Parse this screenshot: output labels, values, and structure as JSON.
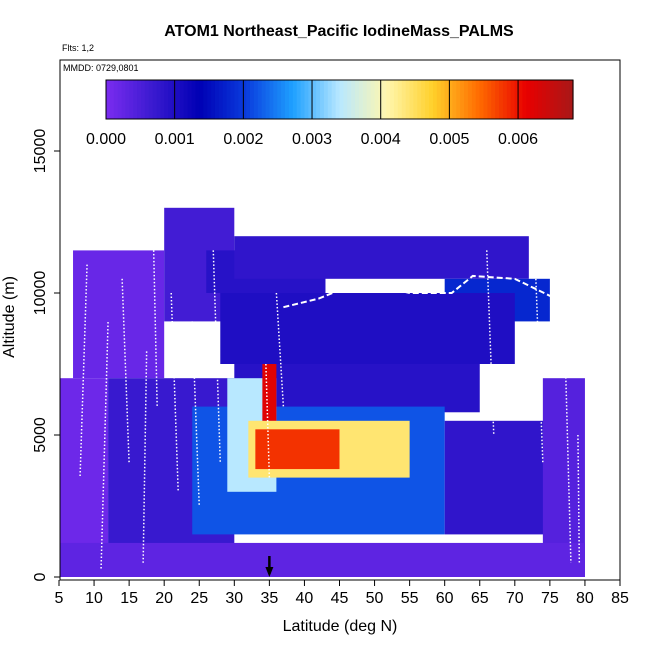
{
  "chart_data": {
    "type": "heatmap",
    "title": "ATOM1 Northeast_Pacific IodineMass_PALMS",
    "note_flights": "Flts: 1,2",
    "note_dates": "MMDD: 0729,0801",
    "xlabel": "Latitude (deg N)",
    "ylabel": "Altitude (m)",
    "xlim": [
      5,
      85
    ],
    "ylim": [
      0,
      17500
    ],
    "x_ticks": [
      "5",
      "10",
      "15",
      "20",
      "25",
      "30",
      "35",
      "40",
      "45",
      "50",
      "55",
      "60",
      "65",
      "70",
      "75",
      "80",
      "85"
    ],
    "y_ticks": [
      "0",
      "5000",
      "10000",
      "15000"
    ],
    "colorbar": {
      "range": [
        0,
        0.0068
      ],
      "tick_labels": [
        "0.000",
        "0.001",
        "0.002",
        "0.003",
        "0.004",
        "0.005",
        "0.006"
      ],
      "colors": [
        "#7b2cf0",
        "#3a1ad0",
        "#0000b4",
        "#0a3cde",
        "#1ea0ff",
        "#b8e8ff",
        "#fff7b0",
        "#ffd02a",
        "#ff6a00",
        "#e80000",
        "#a81818"
      ]
    },
    "marker_latitude": 35,
    "field_regions": [
      {
        "lat": [
          5,
          12
        ],
        "alt": [
          0,
          7000
        ],
        "value": 0.00015
      },
      {
        "lat": [
          7,
          20
        ],
        "alt": [
          7000,
          11500
        ],
        "value": 0.0002
      },
      {
        "lat": [
          20,
          30
        ],
        "alt": [
          9000,
          13000
        ],
        "value": 0.0006
      },
      {
        "lat": [
          26,
          43
        ],
        "alt": [
          10000,
          11500
        ],
        "value": 0.0009
      },
      {
        "lat": [
          30,
          72
        ],
        "alt": [
          10500,
          12000
        ],
        "value": 0.0008
      },
      {
        "lat": [
          60,
          75
        ],
        "alt": [
          9000,
          10500
        ],
        "value": 0.0018
      },
      {
        "lat": [
          12,
          30
        ],
        "alt": [
          0,
          7000
        ],
        "value": 0.0007
      },
      {
        "lat": [
          28,
          70
        ],
        "alt": [
          7500,
          10000
        ],
        "value": 0.001
      },
      {
        "lat": [
          30,
          65
        ],
        "alt": [
          5800,
          7500
        ],
        "value": 0.0009
      },
      {
        "lat": [
          24,
          60
        ],
        "alt": [
          1500,
          6000
        ],
        "value": 0.0022
      },
      {
        "lat": [
          29,
          36
        ],
        "alt": [
          3000,
          7000
        ],
        "value": 0.0034
      },
      {
        "lat": [
          32,
          55
        ],
        "alt": [
          3500,
          5500
        ],
        "value": 0.0044
      },
      {
        "lat": [
          33,
          45
        ],
        "alt": [
          3800,
          5200
        ],
        "value": 0.0058
      },
      {
        "lat": [
          34,
          36
        ],
        "alt": [
          5500,
          7500
        ],
        "value": 0.0062
      },
      {
        "lat": [
          60,
          75
        ],
        "alt": [
          1500,
          5500
        ],
        "value": 0.0008
      },
      {
        "lat": [
          74,
          80
        ],
        "alt": [
          0,
          7000
        ],
        "value": 0.0004
      },
      {
        "lat": [
          5,
          80
        ],
        "alt": [
          0,
          1200
        ],
        "value": 0.0003
      }
    ]
  }
}
